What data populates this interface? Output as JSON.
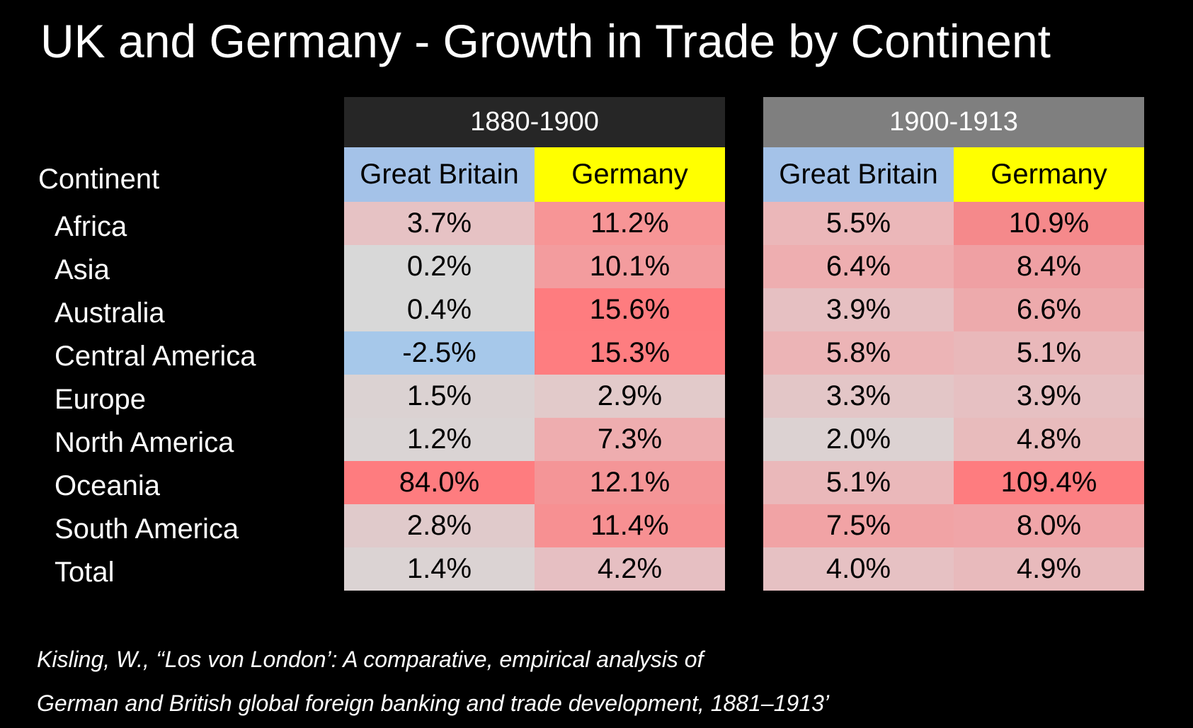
{
  "title": "UK and Germany - Growth in Trade by Continent",
  "continent_header": "Continent",
  "continents": [
    "Africa",
    "Asia",
    "Australia",
    "Central America",
    "Europe",
    "North America",
    "Oceania",
    "South America",
    "Total"
  ],
  "periods": [
    {
      "label": "1880-1900",
      "columns": [
        "Great Britain",
        "Germany"
      ],
      "rows": [
        {
          "values": [
            "3.7%",
            "11.2%"
          ],
          "colors": [
            "#e6c2c4",
            "#f79596"
          ]
        },
        {
          "values": [
            "0.2%",
            "10.1%"
          ],
          "colors": [
            "#d8d8d8",
            "#f39c9e"
          ]
        },
        {
          "values": [
            "0.4%",
            "15.6%"
          ],
          "colors": [
            "#d8d8d8",
            "#fe7c7f"
          ]
        },
        {
          "values": [
            "-2.5%",
            "15.3%"
          ],
          "colors": [
            "#a6c8ea",
            "#fe7d80"
          ]
        },
        {
          "values": [
            "1.5%",
            "2.9%"
          ],
          "colors": [
            "#dbd2d2",
            "#e2caca"
          ]
        },
        {
          "values": [
            "1.2%",
            "7.3%"
          ],
          "colors": [
            "#dad4d4",
            "#eeadaf"
          ]
        },
        {
          "values": [
            "84.0%",
            "12.1%"
          ],
          "colors": [
            "#fe7c7f",
            "#f49597"
          ]
        },
        {
          "values": [
            "2.8%",
            "11.4%"
          ],
          "colors": [
            "#e0cacb",
            "#f79092"
          ]
        },
        {
          "values": [
            "1.4%",
            "4.2%"
          ],
          "colors": [
            "#dbd3d3",
            "#e6bfc2"
          ]
        }
      ]
    },
    {
      "label": "1900-1913",
      "columns": [
        "Great Britain",
        "Germany"
      ],
      "rows": [
        {
          "values": [
            "5.5%",
            "10.9%"
          ],
          "colors": [
            "#ebb7b9",
            "#f5898b"
          ]
        },
        {
          "values": [
            "6.4%",
            "8.4%"
          ],
          "colors": [
            "#eeaeb0",
            "#efa0a3"
          ]
        },
        {
          "values": [
            "3.9%",
            "6.6%"
          ],
          "colors": [
            "#e6c0c2",
            "#edaaac"
          ]
        },
        {
          "values": [
            "5.8%",
            "5.1%"
          ],
          "colors": [
            "#ecb4b6",
            "#e9b8ba"
          ]
        },
        {
          "values": [
            "3.3%",
            "3.9%"
          ],
          "colors": [
            "#e3c6c7",
            "#e6c0c2"
          ]
        },
        {
          "values": [
            "2.0%",
            "4.8%"
          ],
          "colors": [
            "#dcd2d2",
            "#e8bbbc"
          ]
        },
        {
          "values": [
            "5.1%",
            "109.4%"
          ],
          "colors": [
            "#eab8ba",
            "#fe7c7f"
          ]
        },
        {
          "values": [
            "7.5%",
            "8.0%"
          ],
          "colors": [
            "#f1a3a5",
            "#f0a5a8"
          ]
        },
        {
          "values": [
            "4.0%",
            "4.9%"
          ],
          "colors": [
            "#e6c1c3",
            "#e8babc"
          ]
        }
      ]
    }
  ],
  "citation": {
    "line1": "Kisling, W., ‘‘Los von London’: A comparative, empirical analysis of",
    "line2": "German and British global foreign banking and trade development, 1881–1913’"
  }
}
